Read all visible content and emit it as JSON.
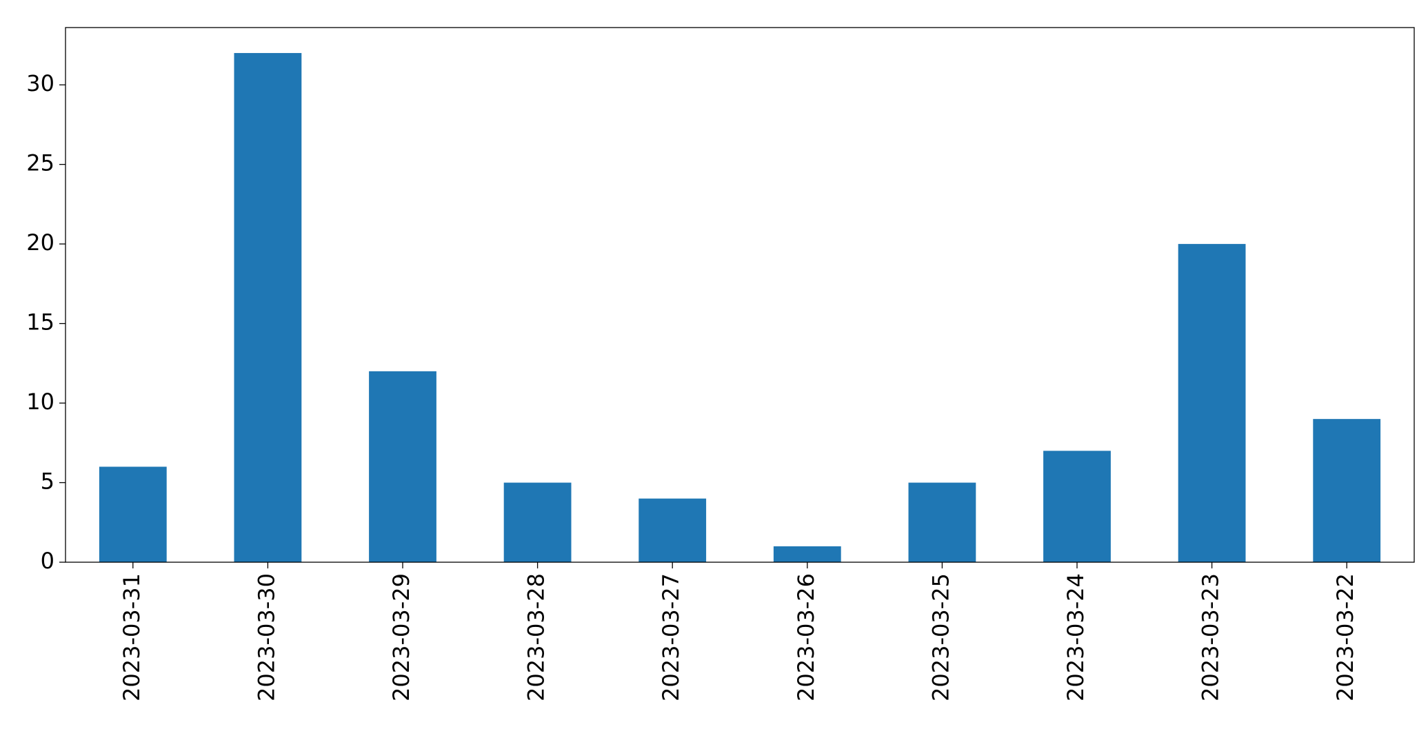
{
  "chart_data": {
    "type": "bar",
    "categories": [
      "2023-03-31",
      "2023-03-30",
      "2023-03-29",
      "2023-03-28",
      "2023-03-27",
      "2023-03-26",
      "2023-03-25",
      "2023-03-24",
      "2023-03-23",
      "2023-03-22"
    ],
    "values": [
      6,
      32,
      12,
      5,
      4,
      1,
      5,
      7,
      20,
      9
    ],
    "color": "#1f77b4",
    "ylim": [
      0,
      33.6
    ],
    "yticks": [
      0,
      5,
      10,
      15,
      20,
      25,
      30
    ],
    "grid": false
  }
}
